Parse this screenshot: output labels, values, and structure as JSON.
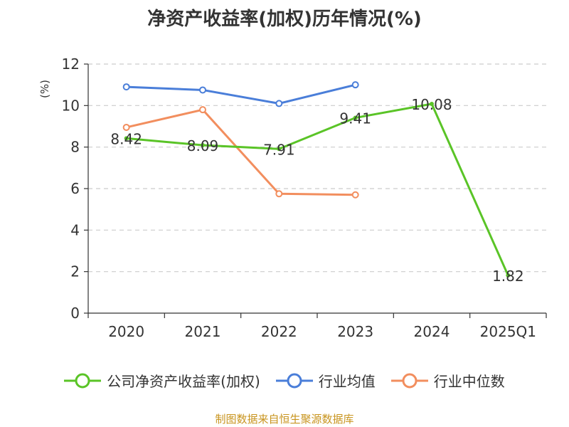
{
  "chart_data": {
    "type": "line",
    "title": "净资产收益率(加权)历年情况(%)",
    "ylabel": "(%)",
    "xlabel": "",
    "categories": [
      "2020",
      "2021",
      "2022",
      "2023",
      "2024",
      "2025Q1"
    ],
    "ylim": [
      0,
      12
    ],
    "yticks": [
      0,
      2,
      4,
      6,
      8,
      10,
      12
    ],
    "grid": true,
    "legend_position": "bottom",
    "series": [
      {
        "name": "公司净资产收益率(加权)",
        "color": "#5ac427",
        "values": [
          8.42,
          8.09,
          7.91,
          9.41,
          10.08,
          1.82
        ],
        "labels": [
          "8.42",
          "8.09",
          "7.91",
          "9.41",
          "10.08",
          "1.82"
        ]
      },
      {
        "name": "行业均值",
        "color": "#4a7ed9",
        "values": [
          10.9,
          10.75,
          10.1,
          11.0,
          null,
          null
        ]
      },
      {
        "name": "行业中位数",
        "color": "#f28e5e",
        "values": [
          8.95,
          9.8,
          5.75,
          5.7,
          null,
          null
        ]
      }
    ]
  },
  "footer": {
    "source": "制图数据来自恒生聚源数据库"
  },
  "colors": {
    "ylabel": "#cc0000",
    "source": "#c8941e",
    "axis": "#333333",
    "grid": "#cccccc"
  }
}
